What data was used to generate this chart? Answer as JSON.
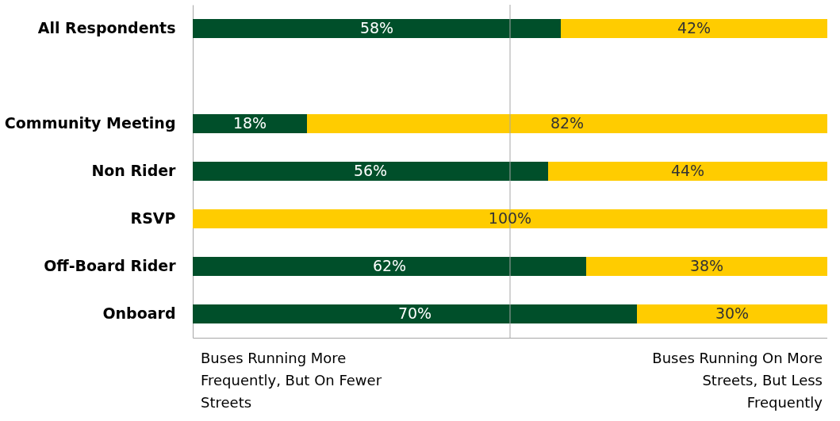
{
  "chart_data": {
    "type": "bar",
    "orientation": "horizontal",
    "stacked": true,
    "categories": [
      "All Respondents",
      null,
      "Community Meeting",
      "Non Rider",
      "RSVP",
      "Off-Board Rider",
      "Onboard"
    ],
    "series": [
      {
        "name": "Buses Running More Frequently, But On Fewer Streets",
        "color": "#004f2a",
        "values": [
          58,
          null,
          18,
          56,
          0,
          62,
          70
        ],
        "value_labels": [
          "58%",
          null,
          "18%",
          "56%",
          null,
          "62%",
          "70%"
        ]
      },
      {
        "name": "Buses Running On More Streets, But Less Frequently",
        "color": "#ffcc00",
        "values": [
          42,
          null,
          82,
          44,
          100,
          38,
          30
        ],
        "value_labels": [
          "42%",
          null,
          "82%",
          "44%",
          "100%",
          "38%",
          "30%"
        ]
      }
    ],
    "xlim": [
      0,
      100
    ],
    "tick_labels": "y",
    "grid": false,
    "legend": "bottom",
    "ref_lines": [
      {
        "axis": "x",
        "value": 50,
        "color": "#a6a6a6"
      }
    ]
  }
}
